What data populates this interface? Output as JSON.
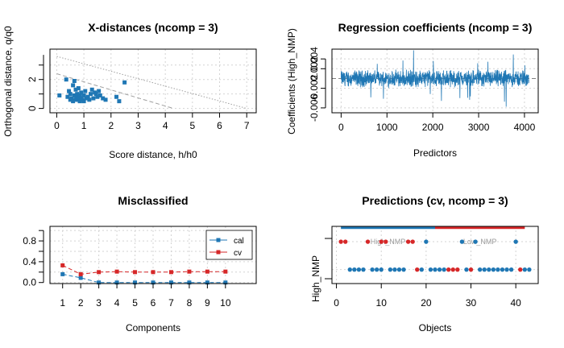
{
  "colors": {
    "cal": "#1f77b4",
    "cv": "#d62728",
    "line": "#1f77b4",
    "limit": "#a0a0a0"
  },
  "chart_data": [
    {
      "type": "scatter",
      "title": "X-distances (ncomp = 3)",
      "xlabel": "Score distance, h/h0",
      "ylabel": "Orthogonal distance, q/q0",
      "xlim": [
        0,
        7
      ],
      "ylim": [
        0,
        4
      ],
      "xticks": [
        "0",
        "1",
        "2",
        "3",
        "4",
        "5",
        "6",
        "7"
      ],
      "yticks": [
        "0",
        "2"
      ],
      "grid": true,
      "limits": [
        {
          "style": "dashed",
          "x": [
            0,
            4.3
          ],
          "y": [
            2.4,
            0
          ]
        },
        {
          "style": "dotted",
          "x": [
            0,
            7
          ],
          "y": [
            3.6,
            0
          ]
        }
      ],
      "points": [
        [
          0.1,
          0.9
        ],
        [
          0.35,
          2.0
        ],
        [
          0.4,
          0.8
        ],
        [
          0.45,
          1.2
        ],
        [
          0.5,
          0.6
        ],
        [
          0.5,
          1.0
        ],
        [
          0.55,
          0.7
        ],
        [
          0.6,
          1.6
        ],
        [
          0.6,
          0.5
        ],
        [
          0.65,
          1.9
        ],
        [
          0.65,
          0.9
        ],
        [
          0.7,
          0.6
        ],
        [
          0.7,
          1.3
        ],
        [
          0.72,
          0.8
        ],
        [
          0.75,
          1.0
        ],
        [
          0.78,
          0.6
        ],
        [
          0.8,
          0.7
        ],
        [
          0.8,
          1.4
        ],
        [
          0.85,
          0.9
        ],
        [
          0.85,
          0.5
        ],
        [
          0.9,
          0.7
        ],
        [
          0.9,
          1.1
        ],
        [
          0.95,
          0.6
        ],
        [
          1.0,
          0.9
        ],
        [
          1.0,
          0.5
        ],
        [
          1.05,
          1.2
        ],
        [
          1.1,
          0.7
        ],
        [
          1.15,
          0.8
        ],
        [
          1.2,
          0.6
        ],
        [
          1.25,
          1.0
        ],
        [
          1.3,
          1.3
        ],
        [
          1.35,
          0.7
        ],
        [
          1.4,
          1.1
        ],
        [
          1.45,
          1.0
        ],
        [
          1.5,
          0.8
        ],
        [
          1.55,
          1.2
        ],
        [
          1.6,
          0.9
        ],
        [
          1.7,
          0.7
        ],
        [
          1.8,
          0.6
        ],
        [
          2.2,
          0.8
        ],
        [
          2.3,
          0.5
        ],
        [
          2.5,
          1.8
        ]
      ]
    },
    {
      "type": "line",
      "title": "Regression coefficients (ncomp = 3)",
      "xlabel": "Predictors",
      "ylabel": "Coefficients (High_NMP)",
      "xlim": [
        -200,
        4300
      ],
      "ylim": [
        -0.007,
        0.006
      ],
      "xticks": [
        "0",
        "1000",
        "2000",
        "3000",
        "4000"
      ],
      "yticks": [
        "-0.006",
        "-0.002",
        "0.002",
        "0.004"
      ],
      "ytick_values": [
        -0.006,
        -0.002,
        0.002,
        0.004
      ],
      "n_predictors": 4100,
      "amplitude": 0.0013,
      "zero_line": true,
      "grid": true
    },
    {
      "type": "line",
      "title": "Misclassified",
      "xlabel": "Components",
      "ylabel": "",
      "categories": [
        "1",
        "2",
        "3",
        "4",
        "5",
        "6",
        "7",
        "8",
        "9",
        "10"
      ],
      "xlim": [
        0.3,
        11.7
      ],
      "ylim": [
        -0.02,
        1.08
      ],
      "yticks": [
        "0.0",
        "0.4",
        "0.8"
      ],
      "ytick_values": [
        0.0,
        0.4,
        0.8
      ],
      "legend_position": "top-right",
      "grid": true,
      "series": [
        {
          "name": "cal",
          "values": [
            0.16,
            0.09,
            0.0,
            0.0,
            0.0,
            0.0,
            0.0,
            0.0,
            0.0,
            0.0
          ]
        },
        {
          "name": "cv",
          "values": [
            0.33,
            0.16,
            0.2,
            0.21,
            0.2,
            0.2,
            0.2,
            0.21,
            0.21,
            0.21
          ]
        }
      ]
    },
    {
      "type": "scatter",
      "title": "Predictions (cv, ncomp = 3)",
      "xlabel": "Objects",
      "ylabel": "High_NMP",
      "xlim": [
        -1,
        45
      ],
      "ylim": [
        0.5,
        2.55
      ],
      "xticks": [
        "0",
        "10",
        "20",
        "30",
        "40"
      ],
      "grid": true,
      "classes": [
        {
          "name": "High_NMP",
          "x_range": [
            1,
            22
          ],
          "color": "#1f77b4"
        },
        {
          "name": "Low_NMP",
          "x_range": [
            22,
            42
          ],
          "color": "#d62728"
        }
      ],
      "upper_row": [
        {
          "x": 1,
          "c": "cv"
        },
        {
          "x": 2,
          "c": "cv"
        },
        {
          "x": 7,
          "c": "cv"
        },
        {
          "x": 10,
          "c": "cv"
        },
        {
          "x": 11,
          "c": "cv"
        },
        {
          "x": 16,
          "c": "cv"
        },
        {
          "x": 17,
          "c": "cv"
        },
        {
          "x": 20,
          "c": "cal"
        },
        {
          "x": 28,
          "c": "cal"
        },
        {
          "x": 31,
          "c": "cal"
        },
        {
          "x": 40,
          "c": "cal"
        }
      ],
      "lower_row": [
        {
          "x": 3,
          "c": "cal"
        },
        {
          "x": 4,
          "c": "cal"
        },
        {
          "x": 5,
          "c": "cal"
        },
        {
          "x": 6,
          "c": "cal"
        },
        {
          "x": 8,
          "c": "cal"
        },
        {
          "x": 9,
          "c": "cal"
        },
        {
          "x": 10,
          "c": "cal"
        },
        {
          "x": 12,
          "c": "cal"
        },
        {
          "x": 13,
          "c": "cal"
        },
        {
          "x": 14,
          "c": "cal"
        },
        {
          "x": 15,
          "c": "cal"
        },
        {
          "x": 18,
          "c": "cv"
        },
        {
          "x": 19,
          "c": "cal"
        },
        {
          "x": 21,
          "c": "cal"
        },
        {
          "x": 22,
          "c": "cal"
        },
        {
          "x": 23,
          "c": "cal"
        },
        {
          "x": 24,
          "c": "cal"
        },
        {
          "x": 25,
          "c": "cv"
        },
        {
          "x": 26,
          "c": "cv"
        },
        {
          "x": 27,
          "c": "cv"
        },
        {
          "x": 29,
          "c": "cal"
        },
        {
          "x": 30,
          "c": "cv"
        },
        {
          "x": 32,
          "c": "cal"
        },
        {
          "x": 33,
          "c": "cal"
        },
        {
          "x": 34,
          "c": "cal"
        },
        {
          "x": 35,
          "c": "cal"
        },
        {
          "x": 36,
          "c": "cal"
        },
        {
          "x": 37,
          "c": "cal"
        },
        {
          "x": 38,
          "c": "cal"
        },
        {
          "x": 39,
          "c": "cal"
        },
        {
          "x": 41,
          "c": "cv"
        },
        {
          "x": 42,
          "c": "cal"
        },
        {
          "x": 43,
          "c": "cal"
        }
      ]
    }
  ]
}
